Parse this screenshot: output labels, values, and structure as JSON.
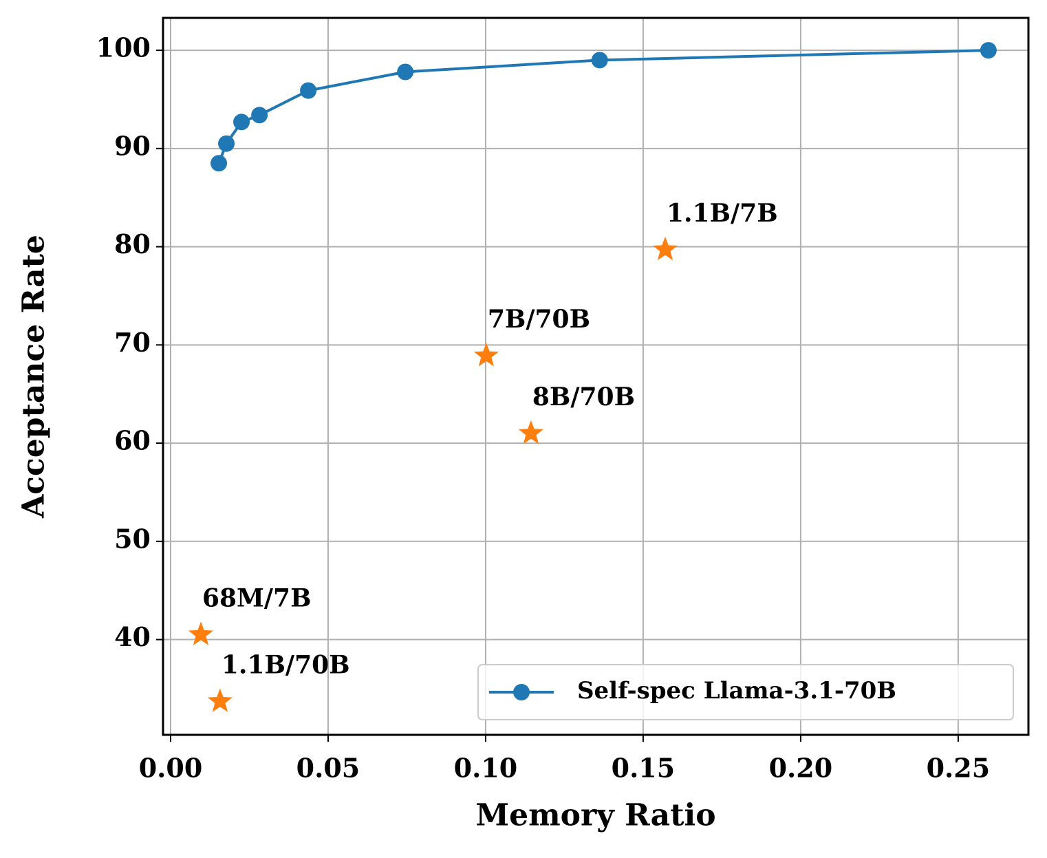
{
  "chart_data": {
    "type": "line",
    "x_label": "Memory Ratio",
    "y_label": "Acceptance Rate",
    "xlim": [
      -0.0024,
      0.2723
    ],
    "ylim": [
      30.3,
      103.3
    ],
    "xticks": [
      {
        "value": 0,
        "label": "0.00"
      },
      0.05,
      {
        "value": 0.1,
        "label": "0.10"
      },
      0.15,
      {
        "value": 0.2,
        "label": "0.20"
      },
      0.25
    ],
    "yticks": [
      40,
      50,
      60,
      70,
      80,
      90,
      100
    ],
    "grid": true,
    "legend": "lower right",
    "series": [
      {
        "name": "Self-spec Llama-3.1-70B",
        "color": "#1f77b4",
        "x": [
          0.0153,
          0.0177,
          0.0225,
          0.0282,
          0.0437,
          0.0745,
          0.1362,
          0.2596
        ],
        "values": [
          88.5,
          90.5,
          92.7,
          93.4,
          95.9,
          97.8,
          99.0,
          100.0
        ]
      }
    ],
    "points_color": "#ff7f0e",
    "points": [
      {
        "label": "68M/7B",
        "x": 0.0096,
        "y": 40.5
      },
      {
        "label": "1.1B/70B",
        "x": 0.0157,
        "y": 33.7
      },
      {
        "label": "7B/70B",
        "x": 0.1002,
        "y": 68.9
      },
      {
        "label": "8B/70B",
        "x": 0.1144,
        "y": 61.0
      },
      {
        "label": "1.1B/7B",
        "x": 0.157,
        "y": 79.7
      }
    ]
  }
}
